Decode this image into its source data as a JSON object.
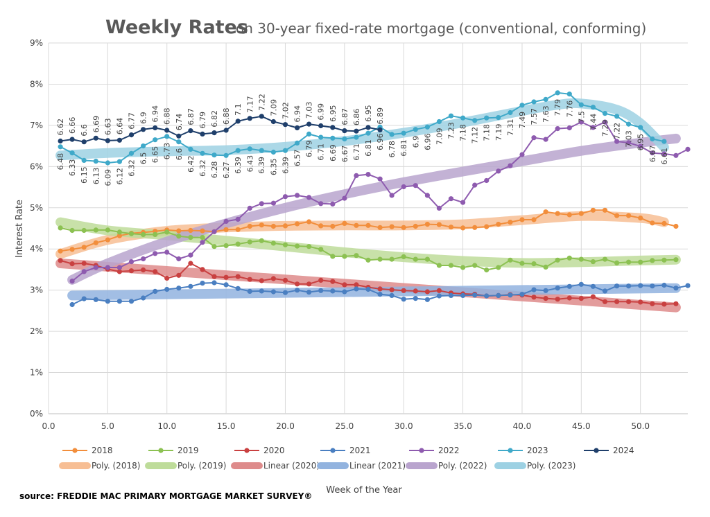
{
  "chart_data": {
    "type": "line",
    "title": "Weekly Rates",
    "subtitle": "on 30-year fixed-rate mortgage (conventional, conforming)",
    "xlabel": "Week of the Year",
    "ylabel": "Interest Rate",
    "source": "source: FREDDIE MAC PRIMARY MORTGAGE MARKET SURVEY®",
    "xlim": [
      0,
      54
    ],
    "ylim": [
      0,
      9
    ],
    "x_ticks": [
      0,
      5,
      10,
      15,
      20,
      25,
      30,
      35,
      40,
      45,
      50
    ],
    "x_tick_labels": [
      "0.0",
      "5.0",
      "10.0",
      "15.0",
      "20.0",
      "25.0",
      "30.0",
      "35.0",
      "40.0",
      "45.0",
      "50.0"
    ],
    "y_ticks": [
      0,
      1,
      2,
      3,
      4,
      5,
      6,
      7,
      8,
      9
    ],
    "y_tick_labels": [
      "0%",
      "1%",
      "2%",
      "3%",
      "4%",
      "5%",
      "6%",
      "7%",
      "8%",
      "9%"
    ],
    "grid": true,
    "legend_position": "bottom",
    "series": [
      {
        "name": "2018",
        "color": "#F28E3C",
        "x_start": 1,
        "values": [
          3.95,
          3.99,
          4.04,
          4.15,
          4.22,
          4.32,
          4.38,
          4.4,
          4.43,
          4.46,
          4.44,
          4.45,
          4.44,
          4.42,
          4.47,
          4.47,
          4.55,
          4.58,
          4.55,
          4.56,
          4.61,
          4.66,
          4.56,
          4.55,
          4.62,
          4.57,
          4.57,
          4.52,
          4.54,
          4.52,
          4.55,
          4.6,
          4.59,
          4.53,
          4.51,
          4.52,
          4.54,
          4.6,
          4.65,
          4.71,
          4.71,
          4.9,
          4.86,
          4.83,
          4.86,
          4.94,
          4.94,
          4.81,
          4.81,
          4.75,
          4.63,
          4.62,
          4.55
        ]
      },
      {
        "name": "2019",
        "color": "#8CC152",
        "x_start": 1,
        "values": [
          4.51,
          4.45,
          4.45,
          4.46,
          4.46,
          4.41,
          4.37,
          4.35,
          4.35,
          4.41,
          4.31,
          4.28,
          4.28,
          4.06,
          4.08,
          4.12,
          4.17,
          4.2,
          4.14,
          4.1,
          4.07,
          4.06,
          3.99,
          3.82,
          3.82,
          3.84,
          3.73,
          3.75,
          3.75,
          3.81,
          3.75,
          3.75,
          3.6,
          3.6,
          3.55,
          3.6,
          3.49,
          3.55,
          3.73,
          3.65,
          3.64,
          3.56,
          3.73,
          3.78,
          3.75,
          3.69,
          3.75,
          3.66,
          3.68,
          3.68,
          3.72,
          3.73,
          3.74
        ]
      },
      {
        "name": "2020",
        "color": "#C94040",
        "x_start": 1,
        "values": [
          3.72,
          3.64,
          3.65,
          3.6,
          3.51,
          3.45,
          3.47,
          3.49,
          3.45,
          3.29,
          3.36,
          3.65,
          3.5,
          3.33,
          3.31,
          3.33,
          3.26,
          3.23,
          3.28,
          3.24,
          3.15,
          3.15,
          3.24,
          3.21,
          3.13,
          3.13,
          3.07,
          3.03,
          3.01,
          2.99,
          2.98,
          2.96,
          2.99,
          2.93,
          2.91,
          2.9,
          2.86,
          2.87,
          2.89,
          2.88,
          2.83,
          2.8,
          2.78,
          2.81,
          2.8,
          2.84,
          2.72,
          2.72,
          2.72,
          2.71,
          2.67,
          2.66,
          2.67
        ]
      },
      {
        "name": "2021",
        "color": "#4A7FC1",
        "x_start": 2,
        "values": [
          2.65,
          2.79,
          2.77,
          2.73,
          2.73,
          2.73,
          2.81,
          2.97,
          3.02,
          3.05,
          3.09,
          3.17,
          3.18,
          3.13,
          3.04,
          2.97,
          2.98,
          2.96,
          2.94,
          3.0,
          2.95,
          2.99,
          2.98,
          2.96,
          3.03,
          3.02,
          2.9,
          2.87,
          2.78,
          2.8,
          2.77,
          2.86,
          2.87,
          2.87,
          2.88,
          2.86,
          2.87,
          2.88,
          2.9,
          3.01,
          2.99,
          3.05,
          3.09,
          3.14,
          3.09,
          2.98,
          3.1,
          3.1,
          3.11,
          3.1,
          3.12,
          3.05,
          3.11
        ]
      },
      {
        "name": "2022",
        "color": "#8E5BAF",
        "x_start": 2,
        "values": [
          3.22,
          3.45,
          3.55,
          3.55,
          3.55,
          3.69,
          3.76,
          3.89,
          3.92,
          3.76,
          3.85,
          4.16,
          4.42,
          4.67,
          4.72,
          4.99,
          5.1,
          5.11,
          5.27,
          5.3,
          5.25,
          5.1,
          5.09,
          5.23,
          5.78,
          5.81,
          5.7,
          5.3,
          5.51,
          5.54,
          5.3,
          4.99,
          5.22,
          5.13,
          5.55,
          5.66,
          5.89,
          6.02,
          6.29,
          6.7,
          6.66,
          6.92,
          6.94,
          7.08,
          6.95,
          7.08,
          6.61,
          6.58,
          6.49,
          6.33,
          6.31,
          6.27,
          6.42
        ]
      },
      {
        "name": "2023",
        "color": "#3FA9C9",
        "x_start": 1,
        "values": [
          6.48,
          6.33,
          6.15,
          6.13,
          6.09,
          6.12,
          6.32,
          6.5,
          6.65,
          6.73,
          6.6,
          6.42,
          6.32,
          6.28,
          6.27,
          6.39,
          6.43,
          6.39,
          6.35,
          6.39,
          6.57,
          6.79,
          6.71,
          6.69,
          6.67,
          6.71,
          6.81,
          6.96,
          6.78,
          6.81,
          6.9,
          6.96,
          7.09,
          7.23,
          7.18,
          7.12,
          7.18,
          7.19,
          7.31,
          7.49,
          7.57,
          7.63,
          7.79,
          7.76,
          7.5,
          7.44,
          7.29,
          7.22,
          7.03,
          6.95,
          6.67,
          6.61
        ]
      },
      {
        "name": "2024",
        "color": "#1F3F6B",
        "x_start": 1,
        "values": [
          6.62,
          6.66,
          6.6,
          6.69,
          6.63,
          6.64,
          6.77,
          6.9,
          6.94,
          6.88,
          6.74,
          6.87,
          6.79,
          6.82,
          6.88,
          7.1,
          7.17,
          7.22,
          7.09,
          7.02,
          6.94,
          7.03,
          6.99,
          6.95,
          6.87,
          6.86,
          6.95,
          6.89
        ]
      }
    ],
    "trendlines": [
      {
        "name": "Poly. (2018)",
        "color": "#F7BE94",
        "x": [
          1,
          5,
          10,
          15,
          20,
          25,
          30,
          35,
          40,
          45,
          50,
          52
        ],
        "values": [
          3.88,
          4.22,
          4.44,
          4.52,
          4.56,
          4.57,
          4.57,
          4.6,
          4.7,
          4.8,
          4.75,
          4.65
        ]
      },
      {
        "name": "Poly. (2019)",
        "color": "#BEDC9A",
        "x": [
          1,
          5,
          10,
          15,
          20,
          25,
          30,
          35,
          40,
          45,
          50,
          53
        ],
        "values": [
          4.65,
          4.45,
          4.33,
          4.2,
          4.06,
          3.92,
          3.8,
          3.71,
          3.66,
          3.68,
          3.72,
          3.74
        ]
      },
      {
        "name": "Linear (2020)",
        "color": "#DE8B8B",
        "x": [
          1,
          53
        ],
        "values": [
          3.65,
          2.58
        ]
      },
      {
        "name": "Linear (2021)",
        "color": "#92B3DF",
        "x": [
          2,
          53
        ],
        "values": [
          2.87,
          3.05
        ]
      },
      {
        "name": "Poly. (2022)",
        "color": "#B9A4CE",
        "x": [
          2,
          5,
          10,
          15,
          20,
          25,
          30,
          35,
          40,
          45,
          50,
          53
        ],
        "values": [
          3.25,
          3.65,
          4.18,
          4.62,
          5.0,
          5.33,
          5.62,
          5.88,
          6.13,
          6.38,
          6.58,
          6.68
        ]
      },
      {
        "name": "Poly. (2023)",
        "color": "#9DD1E3",
        "x": [
          1,
          5,
          10,
          15,
          20,
          25,
          30,
          35,
          40,
          43,
          45,
          48,
          50,
          52
        ],
        "values": [
          6.27,
          6.33,
          6.37,
          6.4,
          6.48,
          6.62,
          6.82,
          7.07,
          7.35,
          7.5,
          7.53,
          7.38,
          7.05,
          6.47
        ]
      }
    ],
    "data_labels": {
      "above_series": "2024",
      "below_series": "2023"
    },
    "legend": [
      [
        "2018",
        "2019",
        "2020",
        "2021",
        "2022",
        "2023",
        "2024"
      ],
      [
        "Poly. (2018)",
        "Poly. (2019)",
        "Linear (2020)",
        "Linear (2021)",
        "Poly. (2022)",
        "Poly. (2023)"
      ]
    ]
  }
}
